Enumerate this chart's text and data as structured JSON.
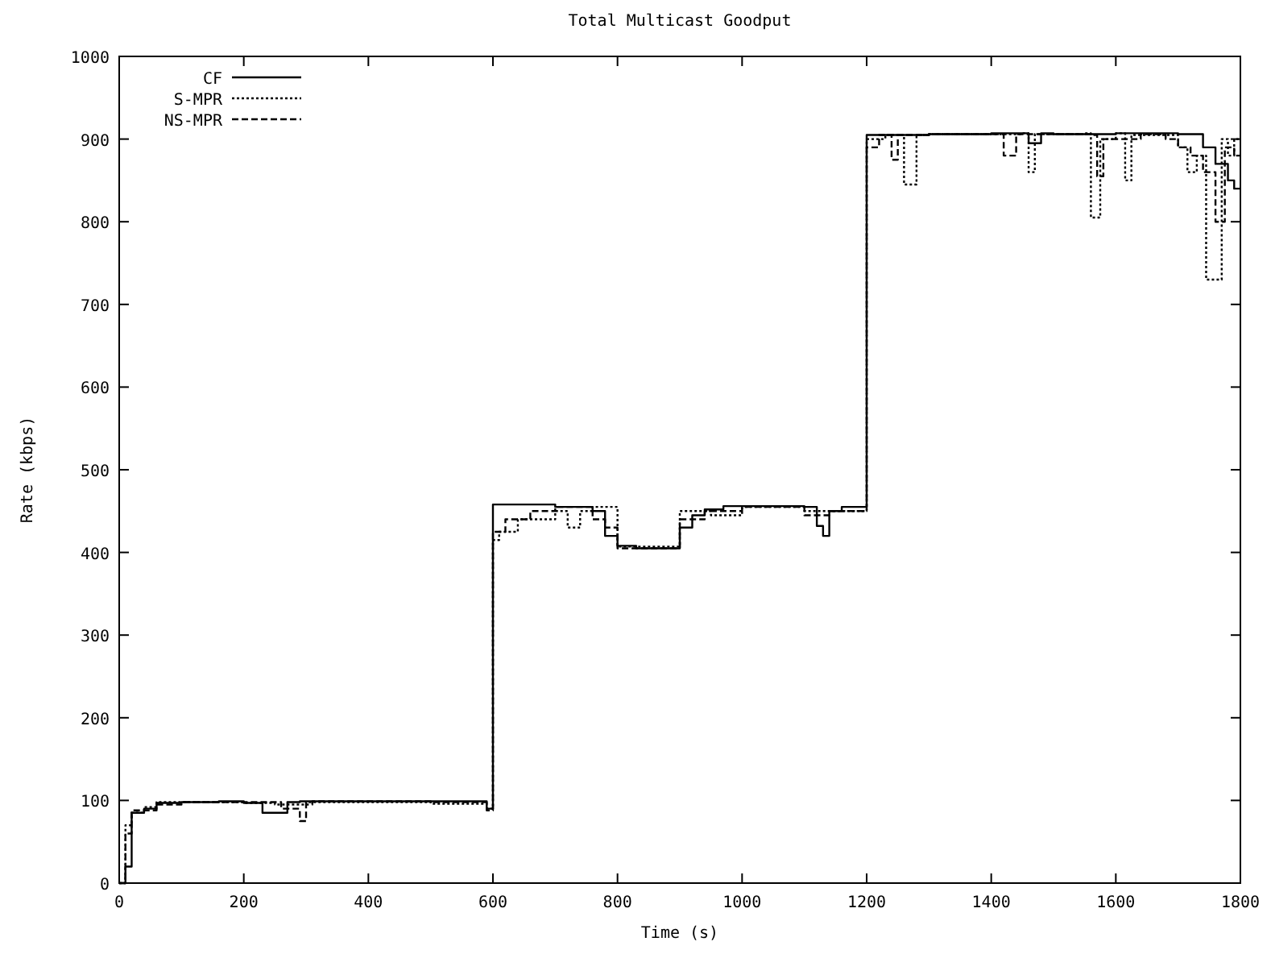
{
  "chart_data": {
    "type": "step",
    "title": "Total Multicast Goodput",
    "xlabel": "Time (s)",
    "ylabel": "Rate (kbps)",
    "xlim": [
      0,
      1800
    ],
    "xticks": [
      0,
      200,
      400,
      600,
      800,
      1000,
      1200,
      1400,
      1600,
      1800
    ],
    "ylim": [
      0,
      1000
    ],
    "yticks": [
      0,
      100,
      200,
      300,
      400,
      500,
      600,
      700,
      800,
      900,
      1000
    ],
    "grid": false,
    "legend": "top left",
    "series": [
      {
        "name": "CF",
        "color": "#000000",
        "line_style": "solid",
        "x": [
          0,
          10,
          20,
          40,
          60,
          100,
          160,
          200,
          230,
          270,
          290,
          590,
          600,
          700,
          760,
          780,
          800,
          830,
          900,
          920,
          940,
          970,
          1100,
          1120,
          1130,
          1140,
          1160,
          1200,
          1300,
          1400,
          1460,
          1480,
          1500,
          1600,
          1700,
          1740,
          1760,
          1780,
          1790,
          1800
        ],
        "values": [
          0,
          20,
          85,
          90,
          97,
          98,
          99,
          97,
          85,
          98,
          99,
          90,
          458,
          455,
          450,
          420,
          408,
          405,
          430,
          445,
          452,
          456,
          455,
          432,
          420,
          450,
          455,
          905,
          906,
          907,
          895,
          907,
          906,
          907,
          906,
          890,
          870,
          850,
          840,
          840
        ]
      },
      {
        "name": "S-MPR",
        "color": "#000000",
        "line_style": "dotted",
        "x": [
          0,
          10,
          20,
          40,
          60,
          200,
          250,
          300,
          500,
          590,
          600,
          610,
          640,
          700,
          720,
          740,
          760,
          800,
          900,
          950,
          1000,
          1100,
          1200,
          1230,
          1260,
          1280,
          1300,
          1450,
          1460,
          1470,
          1550,
          1560,
          1575,
          1600,
          1615,
          1625,
          1700,
          1715,
          1730,
          1745,
          1770,
          1780,
          1790,
          1800
        ],
        "values": [
          0,
          70,
          85,
          92,
          98,
          97,
          95,
          98,
          96,
          90,
          415,
          425,
          440,
          450,
          430,
          450,
          455,
          407,
          450,
          445,
          455,
          450,
          900,
          905,
          845,
          905,
          906,
          907,
          860,
          906,
          907,
          805,
          900,
          907,
          850,
          905,
          890,
          860,
          880,
          730,
          900,
          880,
          900,
          900
        ]
      },
      {
        "name": "NS-MPR",
        "color": "#000000",
        "line_style": "dashed",
        "x": [
          0,
          10,
          20,
          60,
          100,
          260,
          290,
          300,
          310,
          500,
          590,
          600,
          620,
          660,
          700,
          760,
          780,
          800,
          900,
          940,
          1000,
          1100,
          1140,
          1200,
          1220,
          1240,
          1250,
          1300,
          1420,
          1440,
          1560,
          1570,
          1580,
          1640,
          1680,
          1700,
          1720,
          1740,
          1760,
          1775,
          1790,
          1800
        ],
        "values": [
          0,
          60,
          88,
          95,
          98,
          90,
          75,
          95,
          99,
          98,
          88,
          425,
          440,
          450,
          455,
          440,
          430,
          405,
          440,
          450,
          455,
          445,
          450,
          890,
          905,
          875,
          905,
          906,
          880,
          906,
          905,
          855,
          900,
          906,
          900,
          890,
          880,
          860,
          800,
          890,
          880,
          880
        ]
      }
    ]
  }
}
